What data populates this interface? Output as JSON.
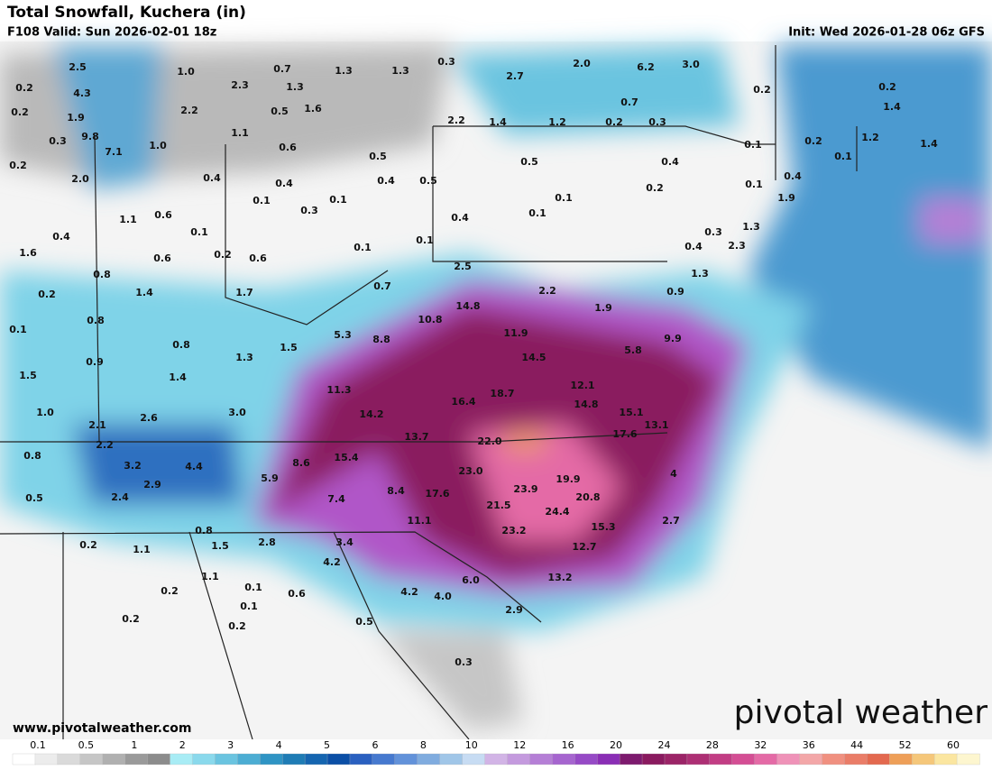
{
  "header": {
    "title": "Total Snowfall, Kuchera (in)",
    "valid": "F108 Valid: Sun 2026-02-01 18z",
    "init": "Init: Wed 2026-01-28 06z GFS"
  },
  "map": {
    "labels": [
      "2.5",
      "1.0",
      "0.7",
      "1.3",
      "1.3",
      "0.3",
      "2.0",
      "6.2",
      "3.0",
      "0.2",
      "0.2",
      "4.3",
      "2.3",
      "1.3",
      "2.7",
      "0.7",
      "0.2",
      "0.2",
      "1.9",
      "2.2",
      "0.5",
      "1.6",
      "2.2",
      "1.4",
      "1.2",
      "0.2",
      "0.3",
      "1.4",
      "0.3",
      "9.8",
      "1.0",
      "1.1",
      "0.6",
      "0.1",
      "0.2",
      "1.2",
      "1.4",
      "7.1",
      "0.5",
      "0.5",
      "0.4",
      "0.1",
      "0.4",
      "0.2",
      "2.0",
      "0.4",
      "0.4",
      "0.4",
      "0.5",
      "0.1",
      "0.2",
      "0.1",
      "1.9",
      "0.1",
      "0.1",
      "0.3",
      "0.1",
      "1.1",
      "0.6",
      "0.4",
      "1.3",
      "0.1",
      "0.3",
      "0.4",
      "0.1",
      "0.1",
      "0.4",
      "2.3",
      "1.6",
      "0.6",
      "0.2",
      "0.6",
      "2.5",
      "0.8",
      "1.3",
      "0.7",
      "2.2",
      "0.9",
      "0.2",
      "1.4",
      "1.7",
      "14.8",
      "1.9",
      "10.8",
      "0.8",
      "0.1",
      "5.3",
      "8.8",
      "11.9",
      "9.9",
      "0.8",
      "1.5",
      "5.8",
      "0.9",
      "1.3",
      "14.5",
      "1.4",
      "1.5",
      "11.3",
      "12.1",
      "18.7",
      "16.4",
      "14.8",
      "3.0",
      "1.0",
      "15.1",
      "2.6",
      "14.2",
      "2.1",
      "13.1",
      "17.6",
      "13.7",
      "22.0",
      "2.2",
      "0.8",
      "15.4",
      "8.6",
      "3.2",
      "4.4",
      "23.0",
      "4",
      "5.9",
      "19.9",
      "2.9",
      "23.9",
      "8.4",
      "0.5",
      "2.4",
      "7.4",
      "17.6",
      "20.8",
      "21.5",
      "24.4",
      "11.1",
      "2.7",
      "15.3",
      "0.8",
      "23.2",
      "2.8",
      "3.4",
      "0.2",
      "1.1",
      "1.5",
      "12.7",
      "4.2",
      "1.1",
      "13.2",
      "6.0",
      "0.1",
      "0.2",
      "0.6",
      "4.2",
      "4.0",
      "0.1",
      "2.9",
      "0.2",
      "0.5",
      "0.2",
      "0.3"
    ]
  },
  "footer": {
    "website": "www.pivotalweather.com",
    "logo": "pivotal weather"
  },
  "legend": {
    "ticks": [
      0.1,
      0.5,
      1,
      2,
      3,
      4,
      5,
      6,
      8,
      10,
      12,
      16,
      20,
      24,
      28,
      32,
      36,
      44,
      52,
      60
    ],
    "colors": [
      "#ffffff",
      "#ececec",
      "#dadada",
      "#c6c6c6",
      "#b0b0b0",
      "#9a9a9a",
      "#8c8c8c",
      "#a8ecf5",
      "#8ad9ec",
      "#6ac4e0",
      "#4cadd3",
      "#2f94c4",
      "#1f7cb5",
      "#1565b0",
      "#0b4fa6",
      "#2a60c0",
      "#4679cf",
      "#6292da",
      "#80acdf",
      "#a0c6e8",
      "#c7dcf3",
      "#d2b4e6",
      "#c49ade",
      "#b57fd6",
      "#a665cf",
      "#964ac6",
      "#8a2eb5",
      "#7d1a6e",
      "#8a1a5f",
      "#9b2467",
      "#ad2f74",
      "#c23d84",
      "#d44e94",
      "#e46aa6",
      "#ef92b8",
      "#f3a7a8",
      "#f09080",
      "#ea7d68",
      "#e3694f",
      "#ee9f58",
      "#f5c77a",
      "#fbe6a0",
      "#fdf6cf"
    ]
  }
}
